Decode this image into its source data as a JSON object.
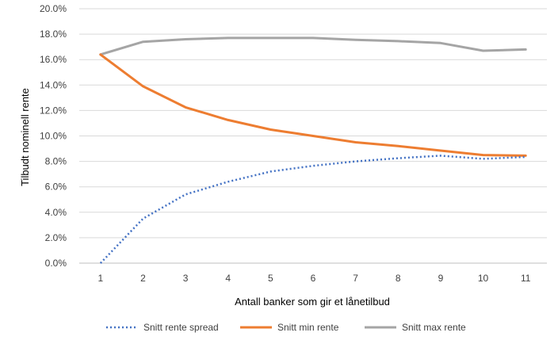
{
  "chart_data": {
    "type": "line",
    "title": "",
    "xlabel": "Antall banker som gir et lånetilbud",
    "ylabel": "Tilbudt nominell rente",
    "x": [
      1,
      2,
      3,
      4,
      5,
      6,
      7,
      8,
      9,
      10,
      11
    ],
    "x_tick_labels": [
      "1",
      "2",
      "3",
      "4",
      "5",
      "6",
      "7",
      "8",
      "9",
      "10",
      "11"
    ],
    "ylim": [
      0,
      20
    ],
    "y_ticks": [
      0,
      2,
      4,
      6,
      8,
      10,
      12,
      14,
      16,
      18,
      20
    ],
    "y_tick_labels": [
      "0.0%",
      "2.0%",
      "4.0%",
      "6.0%",
      "8.0%",
      "10.0%",
      "12.0%",
      "14.0%",
      "16.0%",
      "18.0%",
      "20.0%"
    ],
    "grid": "horizontal",
    "legend_position": "bottom",
    "series": [
      {
        "name": "Snitt rente spread",
        "color": "#4472c4",
        "style": "dotted",
        "values": [
          0.0,
          3.5,
          5.4,
          6.4,
          7.2,
          7.65,
          8.0,
          8.25,
          8.45,
          8.2,
          8.35
        ]
      },
      {
        "name": "Snitt min rente",
        "color": "#ed7d31",
        "style": "solid",
        "values": [
          16.4,
          13.9,
          12.25,
          11.25,
          10.5,
          10.0,
          9.5,
          9.2,
          8.85,
          8.5,
          8.45
        ]
      },
      {
        "name": "Snitt max rente",
        "color": "#a5a5a5",
        "style": "solid",
        "values": [
          16.4,
          17.4,
          17.6,
          17.7,
          17.7,
          17.7,
          17.55,
          17.45,
          17.3,
          16.7,
          16.8
        ]
      }
    ]
  }
}
